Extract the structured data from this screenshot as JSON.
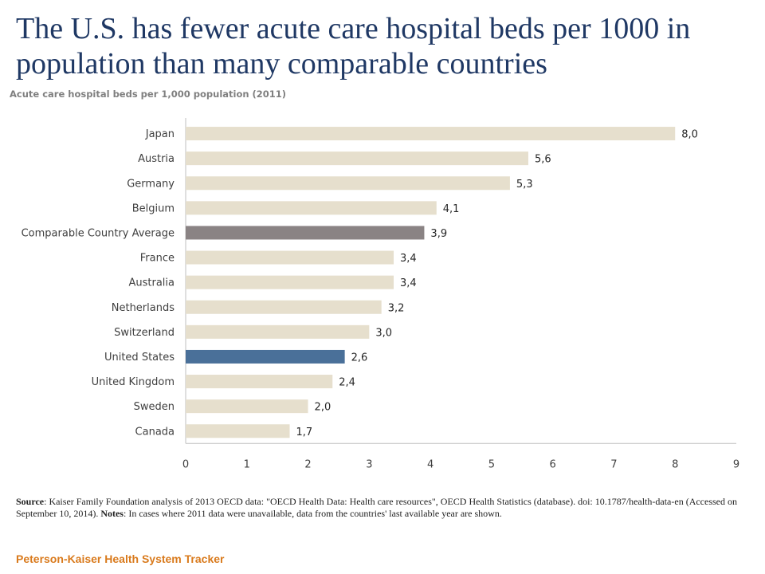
{
  "header": {
    "title": "The U.S. has fewer acute care hospital beds per 1000 in population than many comparable countries",
    "subtitle": "Acute care hospital beds per 1,000 population (2011)"
  },
  "chart_data": {
    "type": "bar",
    "orientation": "horizontal",
    "categories": [
      "Japan",
      "Austria",
      "Germany",
      "Belgium",
      "Comparable Country Average",
      "France",
      "Australia",
      "Netherlands",
      "Switzerland",
      "United States",
      "United Kingdom",
      "Sweden",
      "Canada"
    ],
    "values": [
      8.0,
      5.6,
      5.3,
      4.1,
      3.9,
      3.4,
      3.4,
      3.2,
      3.0,
      2.6,
      2.4,
      2.0,
      1.7
    ],
    "data_labels": [
      "8,0",
      "5,6",
      "5,3",
      "4,1",
      "3,9",
      "3,4",
      "3,4",
      "3,2",
      "3,0",
      "2,6",
      "2,4",
      "2,0",
      "1,7"
    ],
    "xlim": [
      0,
      9
    ],
    "xticks": [
      "0",
      "1",
      "2",
      "3",
      "4",
      "5",
      "6",
      "7",
      "8",
      "9"
    ],
    "grid": false,
    "colors": {
      "default": "#e6dfcd",
      "Comparable Country Average": "#8a8384",
      "United States": "#4a7099"
    },
    "title": "",
    "xlabel": "",
    "ylabel": ""
  },
  "source": {
    "source_label": "Source",
    "source_text": ": Kaiser Family Foundation analysis of 2013 OECD data: \"OECD Health Data: Health care resources\", OECD Health Statistics (database). doi: 10.1787/health-data-en (Accessed on September 10, 2014). ",
    "notes_label": "Notes",
    "notes_text": ": In cases where 2011 data were unavailable, data from the countries' last available year are shown."
  },
  "footer": {
    "text": "Peterson-Kaiser Health System Tracker"
  }
}
